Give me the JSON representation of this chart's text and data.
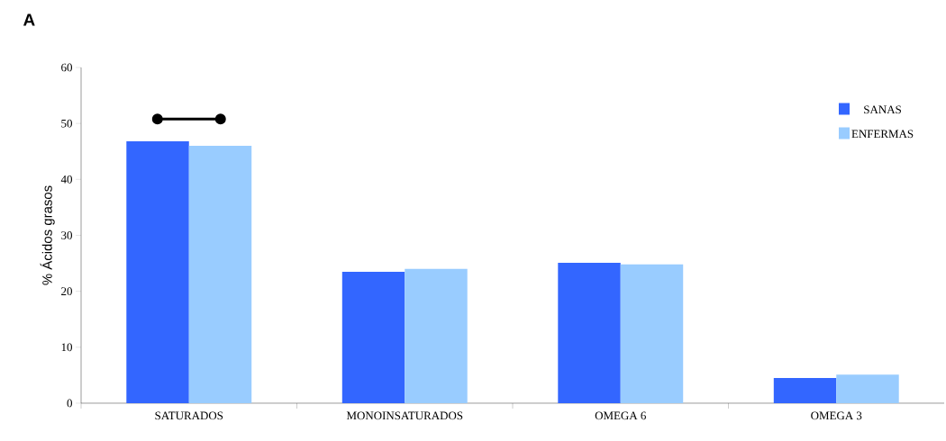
{
  "chart_data": {
    "type": "bar",
    "ylabel": "% Ácidos grasos",
    "categories": [
      "SATURADOS",
      "MONOINSATURADOS",
      "OMEGA 6",
      "OMEGA 3"
    ],
    "series": [
      {
        "name": "SANAS",
        "color": "#3366ff",
        "values": [
          46.8,
          23.5,
          25.1,
          4.5
        ]
      },
      {
        "name": "ENFERMAS",
        "color": "#99ccff",
        "values": [
          46.0,
          24.0,
          24.8,
          5.1
        ]
      }
    ],
    "ylim": [
      0,
      60
    ],
    "yticks": [
      0,
      10,
      20,
      30,
      40,
      50,
      60
    ],
    "legend": "top right",
    "grid": false,
    "annotations": [
      "A"
    ]
  }
}
